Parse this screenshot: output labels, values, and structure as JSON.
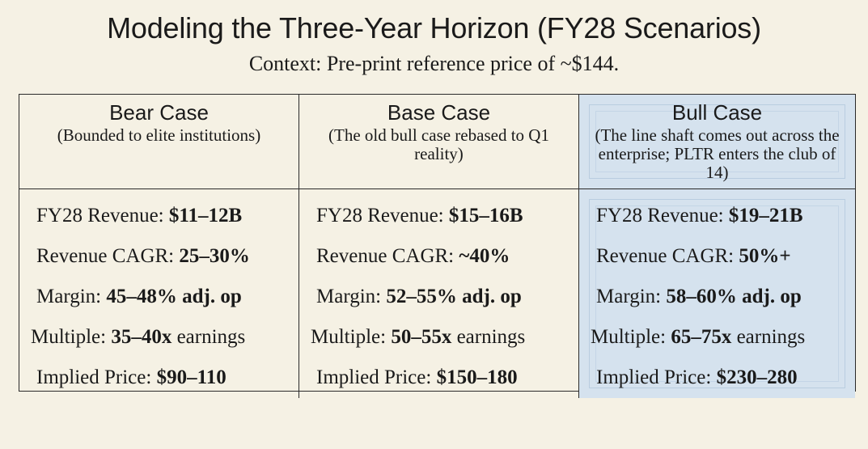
{
  "title": "Modeling the Three-Year Horizon (FY28 Scenarios)",
  "subtitle": "Context: Pre-print reference price of ~$144.",
  "cases": [
    {
      "name": "Bear Case",
      "description": "(Bounded to elite institutions)",
      "metrics": [
        {
          "label": "FY28 Revenue: ",
          "value": "$11–12B",
          "bold_part": "$11–12B"
        },
        {
          "label": "Revenue CAGR: ",
          "value": "25–30%"
        },
        {
          "label": "Margin: ",
          "value": "45–48% adj. op"
        },
        {
          "label": "Multiple: ",
          "value": "35–40x",
          "suffix": " earnings"
        },
        {
          "label": "Implied Price: ",
          "value": "$90–110"
        }
      ]
    },
    {
      "name": "Base Case",
      "description": "(The old bull case rebased to Q1 reality)",
      "metrics": [
        {
          "label": "FY28 Revenue: ",
          "value": "$15–16B"
        },
        {
          "label": "Revenue CAGR: ",
          "value": "~40%"
        },
        {
          "label": "Margin: ",
          "value": "52–55% adj. op"
        },
        {
          "label": "Multiple: ",
          "value": "50–55x",
          "suffix": " earnings"
        },
        {
          "label": "Implied Price: ",
          "value": "$150–180"
        }
      ]
    },
    {
      "name": "Bull Case",
      "description": "(The line shaft comes out across the enterprise; PLTR enters the club of 14)",
      "metrics": [
        {
          "label": "FY28 Revenue: ",
          "value": "$19–21B"
        },
        {
          "label": "Revenue CAGR: ",
          "value": "50%+"
        },
        {
          "label": "Margin: ",
          "value": "58–60% adj. op"
        },
        {
          "label": "Multiple: ",
          "value": "65–75x",
          "suffix": " earnings"
        },
        {
          "label": "Implied Price: ",
          "value": "$230–280"
        }
      ]
    }
  ],
  "colors": {
    "background": "#f5f1e4",
    "bull_highlight": "#d5e2ee",
    "border": "#2a2a2a"
  }
}
